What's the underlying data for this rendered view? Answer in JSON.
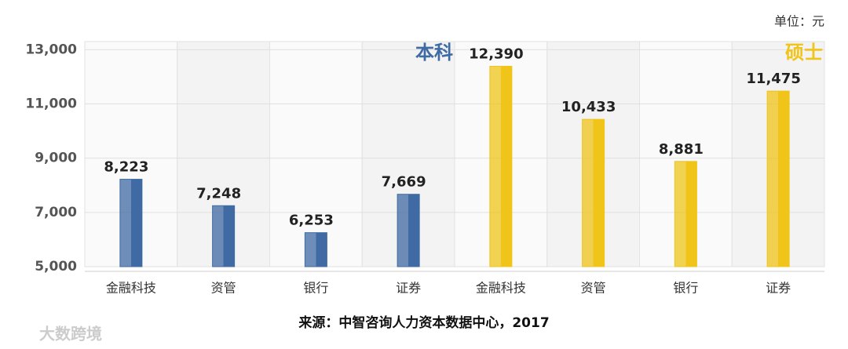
{
  "chart_data": {
    "type": "bar",
    "unit": "单位：元",
    "source": "来源：中智咨询人力资本数据中心，2017",
    "watermark": "大数跨境",
    "categories": [
      "金融科技",
      "资管",
      "银行",
      "证券",
      "金融科技",
      "资管",
      "银行",
      "证券"
    ],
    "series": [
      {
        "name": "本科",
        "color": "#3f6aa3",
        "values": [
          8223,
          7248,
          6253,
          7669,
          null,
          null,
          null,
          null
        ],
        "value_labels": [
          "8,223",
          "7,248",
          "6,253",
          "7,669",
          null,
          null,
          null,
          null
        ]
      },
      {
        "name": "硕士",
        "color": "#f0c419",
        "values": [
          null,
          null,
          null,
          null,
          12390,
          10433,
          8881,
          11475
        ],
        "value_labels": [
          null,
          null,
          null,
          null,
          "12,390",
          "10,433",
          "8,881",
          "11,475"
        ]
      }
    ],
    "ylim": [
      5000,
      13300
    ],
    "yticks": [
      {
        "value": 5000,
        "label": "5,000"
      },
      {
        "value": 7000,
        "label": "7,000"
      },
      {
        "value": 9000,
        "label": "9,000"
      },
      {
        "value": 11000,
        "label": "11,000"
      },
      {
        "value": 13000,
        "label": "13,000"
      }
    ],
    "grid": true
  }
}
